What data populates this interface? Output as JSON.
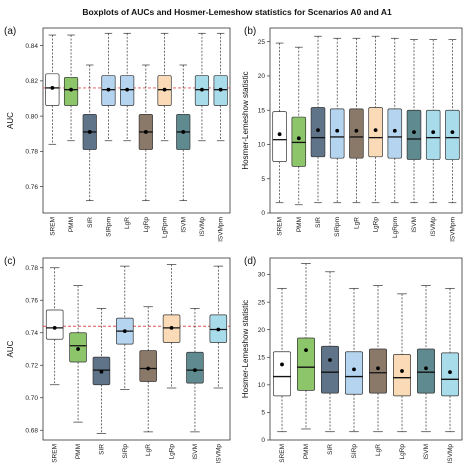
{
  "figure_title": "Boxplots of AUCs and Hosmer-Lemeshow statistics for Scenarios A0 and A1",
  "chart_data": [
    {
      "panel": "(a)",
      "type": "box",
      "ylabel": "AUC",
      "ylim": [
        0.745,
        0.85
      ],
      "yticks": [
        0.76,
        0.78,
        0.8,
        0.82,
        0.84
      ],
      "reference_line": 0.816,
      "categories": [
        "SREM",
        "PMM",
        "SIR",
        "SIRpm",
        "LgR",
        "LgRp",
        "LgRpm",
        "lSVM",
        "lSVMp",
        "lSVMpm"
      ],
      "boxes": [
        {
          "min": 0.784,
          "q1": 0.806,
          "median": 0.816,
          "q3": 0.824,
          "max": 0.846,
          "mean": 0.816,
          "color": "#ffffff"
        },
        {
          "min": 0.786,
          "q1": 0.806,
          "median": 0.815,
          "q3": 0.822,
          "max": 0.846,
          "mean": 0.815,
          "color": "#8cc56a"
        },
        {
          "min": 0.752,
          "q1": 0.781,
          "median": 0.791,
          "q3": 0.801,
          "max": 0.829,
          "mean": 0.791,
          "color": "#5f7489"
        },
        {
          "min": 0.786,
          "q1": 0.806,
          "median": 0.815,
          "q3": 0.823,
          "max": 0.847,
          "mean": 0.815,
          "color": "#b5d4ef"
        },
        {
          "min": 0.786,
          "q1": 0.806,
          "median": 0.815,
          "q3": 0.823,
          "max": 0.847,
          "mean": 0.815,
          "color": "#b5d4ef"
        },
        {
          "min": 0.752,
          "q1": 0.781,
          "median": 0.791,
          "q3": 0.801,
          "max": 0.829,
          "mean": 0.791,
          "color": "#8a7868"
        },
        {
          "min": 0.786,
          "q1": 0.806,
          "median": 0.815,
          "q3": 0.823,
          "max": 0.847,
          "mean": 0.815,
          "color": "#fbdbb7"
        },
        {
          "min": 0.752,
          "q1": 0.781,
          "median": 0.791,
          "q3": 0.801,
          "max": 0.829,
          "mean": 0.791,
          "color": "#5f8a90"
        },
        {
          "min": 0.786,
          "q1": 0.806,
          "median": 0.815,
          "q3": 0.823,
          "max": 0.847,
          "mean": 0.815,
          "color": "#a9dceb"
        },
        {
          "min": 0.786,
          "q1": 0.806,
          "median": 0.815,
          "q3": 0.823,
          "max": 0.847,
          "mean": 0.815,
          "color": "#a9dceb"
        }
      ]
    },
    {
      "panel": "(b)",
      "type": "box",
      "ylabel": "Hosmer-Lemeshow statistic",
      "ylim": [
        0,
        27
      ],
      "yticks": [
        0,
        5,
        10,
        15,
        20,
        25
      ],
      "categories": [
        "SREM",
        "PMM",
        "SIR",
        "SIRpm",
        "LgR",
        "LgRp",
        "LgRpm",
        "lSVM",
        "lSVMp",
        "lSVMpm"
      ],
      "boxes": [
        {
          "min": 1.5,
          "q1": 7.5,
          "median": 10.7,
          "q3": 14.8,
          "max": 24.8,
          "mean": 11.5,
          "color": "#ffffff"
        },
        {
          "min": 1.2,
          "q1": 6.8,
          "median": 10.3,
          "q3": 14.0,
          "max": 24.2,
          "mean": 10.9,
          "color": "#8cc56a"
        },
        {
          "min": 1.5,
          "q1": 8.2,
          "median": 11.0,
          "q3": 15.4,
          "max": 25.8,
          "mean": 12.1,
          "color": "#5f7489"
        },
        {
          "min": 1.5,
          "q1": 8.0,
          "median": 11.1,
          "q3": 15.2,
          "max": 25.5,
          "mean": 12.0,
          "color": "#b5d4ef"
        },
        {
          "min": 1.5,
          "q1": 8.0,
          "median": 11.1,
          "q3": 15.2,
          "max": 25.5,
          "mean": 12.0,
          "color": "#8a7868"
        },
        {
          "min": 1.5,
          "q1": 8.2,
          "median": 11.0,
          "q3": 15.4,
          "max": 25.8,
          "mean": 12.1,
          "color": "#fbdbb7"
        },
        {
          "min": 1.5,
          "q1": 8.0,
          "median": 11.1,
          "q3": 15.2,
          "max": 25.5,
          "mean": 12.0,
          "color": "#b5d4ef"
        },
        {
          "min": 1.5,
          "q1": 7.8,
          "median": 10.8,
          "q3": 15.0,
          "max": 25.3,
          "mean": 11.8,
          "color": "#5f8a90"
        },
        {
          "min": 1.5,
          "q1": 7.8,
          "median": 11.0,
          "q3": 15.0,
          "max": 25.3,
          "mean": 11.8,
          "color": "#a9dceb"
        },
        {
          "min": 1.5,
          "q1": 7.8,
          "median": 11.0,
          "q3": 15.0,
          "max": 25.3,
          "mean": 11.8,
          "color": "#a9dceb"
        }
      ]
    },
    {
      "panel": "(c)",
      "type": "box",
      "ylabel": "AUC",
      "ylim": [
        0.674,
        0.786
      ],
      "yticks": [
        0.68,
        0.7,
        0.72,
        0.74,
        0.76,
        0.78
      ],
      "reference_line": 0.744,
      "categories": [
        "SREM",
        "PMM",
        "SIR",
        "SIRp",
        "LgR",
        "LgRp",
        "lSVM",
        "lSVMp"
      ],
      "boxes": [
        {
          "min": 0.708,
          "q1": 0.736,
          "median": 0.743,
          "q3": 0.754,
          "max": 0.78,
          "mean": 0.743,
          "color": "#ffffff"
        },
        {
          "min": 0.685,
          "q1": 0.722,
          "median": 0.732,
          "q3": 0.74,
          "max": 0.769,
          "mean": 0.73,
          "color": "#8cc56a"
        },
        {
          "min": 0.678,
          "q1": 0.708,
          "median": 0.717,
          "q3": 0.725,
          "max": 0.755,
          "mean": 0.716,
          "color": "#5f7489"
        },
        {
          "min": 0.705,
          "q1": 0.733,
          "median": 0.741,
          "q3": 0.749,
          "max": 0.781,
          "mean": 0.741,
          "color": "#b5d4ef"
        },
        {
          "min": 0.679,
          "q1": 0.71,
          "median": 0.718,
          "q3": 0.729,
          "max": 0.756,
          "mean": 0.718,
          "color": "#8a7868"
        },
        {
          "min": 0.706,
          "q1": 0.734,
          "median": 0.743,
          "q3": 0.751,
          "max": 0.782,
          "mean": 0.743,
          "color": "#fbdbb7"
        },
        {
          "min": 0.679,
          "q1": 0.709,
          "median": 0.717,
          "q3": 0.728,
          "max": 0.755,
          "mean": 0.717,
          "color": "#5f8a90"
        },
        {
          "min": 0.706,
          "q1": 0.734,
          "median": 0.742,
          "q3": 0.751,
          "max": 0.781,
          "mean": 0.742,
          "color": "#a9dceb"
        }
      ]
    },
    {
      "panel": "(d)",
      "type": "box",
      "ylabel": "Hosmer-Lemeshow statistic",
      "ylim": [
        0,
        33
      ],
      "yticks": [
        0,
        5,
        10,
        15,
        20,
        25,
        30
      ],
      "categories": [
        "SREM",
        "PMM",
        "SIR",
        "SIRp",
        "LgR",
        "LgRp",
        "lSVM",
        "lSVMp"
      ],
      "boxes": [
        {
          "min": 1.5,
          "q1": 8.0,
          "median": 11.5,
          "q3": 16.0,
          "max": 27.5,
          "mean": 13.7,
          "color": "#ffffff"
        },
        {
          "min": 2.0,
          "q1": 9.0,
          "median": 13.2,
          "q3": 18.5,
          "max": 32.0,
          "mean": 16.3,
          "color": "#8cc56a"
        },
        {
          "min": 1.5,
          "q1": 8.5,
          "median": 12.3,
          "q3": 17.0,
          "max": 30.5,
          "mean": 14.5,
          "color": "#5f7489"
        },
        {
          "min": 1.5,
          "q1": 8.3,
          "median": 11.5,
          "q3": 16.0,
          "max": 27.5,
          "mean": 12.8,
          "color": "#b5d4ef"
        },
        {
          "min": 1.5,
          "q1": 8.5,
          "median": 12.2,
          "q3": 16.5,
          "max": 28.0,
          "mean": 13.0,
          "color": "#8a7868"
        },
        {
          "min": 1.5,
          "q1": 8.0,
          "median": 11.3,
          "q3": 15.5,
          "max": 26.5,
          "mean": 12.5,
          "color": "#fbdbb7"
        },
        {
          "min": 1.5,
          "q1": 8.5,
          "median": 12.3,
          "q3": 16.5,
          "max": 28.0,
          "mean": 13.0,
          "color": "#5f8a90"
        },
        {
          "min": 1.5,
          "q1": 8.0,
          "median": 11.0,
          "q3": 15.8,
          "max": 27.5,
          "mean": 12.3,
          "color": "#a9dceb"
        }
      ]
    }
  ]
}
